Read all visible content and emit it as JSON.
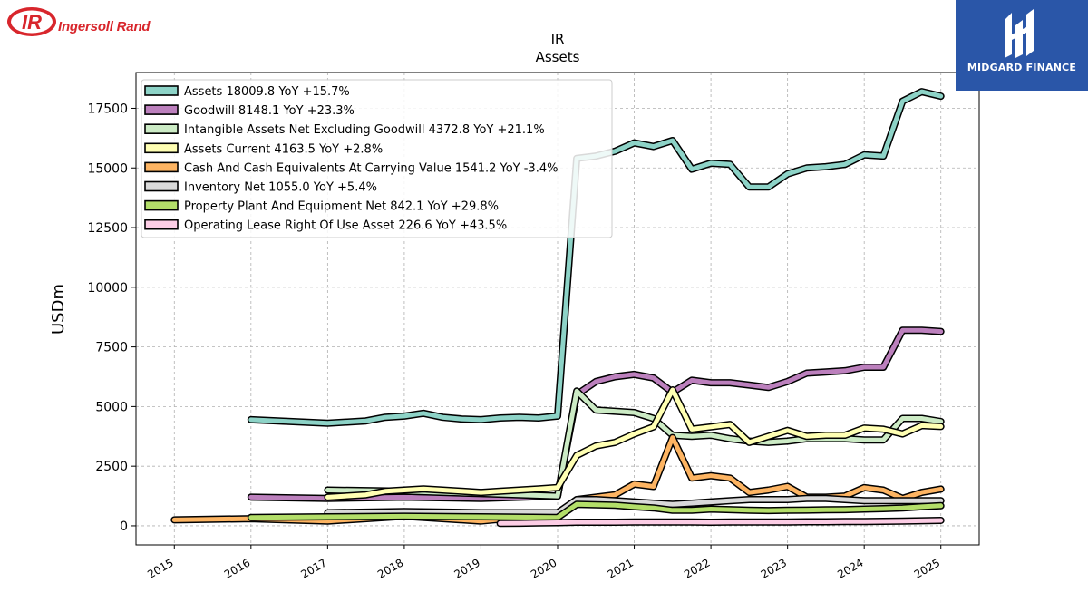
{
  "logos": {
    "left_brand": "Ingersoll Rand",
    "left_monogram": "IR",
    "right_brand": "MIDGARD FINANCE"
  },
  "chart_data": {
    "type": "line",
    "title": "IR",
    "subtitle": "Assets",
    "xlabel": "",
    "ylabel": "USDm",
    "xlim": [
      2014.5,
      2025.5
    ],
    "ylim": [
      -800,
      19000
    ],
    "x_ticks": [
      "2015",
      "2016",
      "2017",
      "2018",
      "2019",
      "2020",
      "2021",
      "2022",
      "2023",
      "2024",
      "2025"
    ],
    "y_ticks": [
      "0",
      "2500",
      "5000",
      "7500",
      "10000",
      "12500",
      "15000",
      "17500"
    ],
    "grid": true,
    "legend_position": "top-left",
    "series": [
      {
        "name": "Assets",
        "legend": "Assets  18009.8 YoY +15.7%",
        "color": "#8dd3c7",
        "points": [
          [
            2016.0,
            4450
          ],
          [
            2017.0,
            4300
          ],
          [
            2017.5,
            4400
          ],
          [
            2017.75,
            4550
          ],
          [
            2018.0,
            4600
          ],
          [
            2018.25,
            4720
          ],
          [
            2018.5,
            4550
          ],
          [
            2018.75,
            4480
          ],
          [
            2019.0,
            4450
          ],
          [
            2019.25,
            4520
          ],
          [
            2019.5,
            4550
          ],
          [
            2019.75,
            4520
          ],
          [
            2020.0,
            4600
          ],
          [
            2020.25,
            15400
          ],
          [
            2020.5,
            15500
          ],
          [
            2020.75,
            15700
          ],
          [
            2021.0,
            16050
          ],
          [
            2021.25,
            15900
          ],
          [
            2021.5,
            16150
          ],
          [
            2021.75,
            14950
          ],
          [
            2022.0,
            15200
          ],
          [
            2022.25,
            15150
          ],
          [
            2022.5,
            14200
          ],
          [
            2022.75,
            14200
          ],
          [
            2023.0,
            14750
          ],
          [
            2023.25,
            15000
          ],
          [
            2023.5,
            15050
          ],
          [
            2023.75,
            15150
          ],
          [
            2024.0,
            15550
          ],
          [
            2024.25,
            15500
          ],
          [
            2024.5,
            17800
          ],
          [
            2024.75,
            18200
          ],
          [
            2025.0,
            18010
          ]
        ]
      },
      {
        "name": "Goodwill",
        "legend": "Goodwill  8148.1 YoY +23.3%",
        "color": "#bc80bd",
        "points": [
          [
            2016.0,
            1200
          ],
          [
            2017.0,
            1150
          ],
          [
            2018.0,
            1200
          ],
          [
            2019.0,
            1150
          ],
          [
            2020.0,
            1250
          ],
          [
            2020.25,
            5500
          ],
          [
            2020.5,
            6050
          ],
          [
            2020.75,
            6250
          ],
          [
            2021.0,
            6350
          ],
          [
            2021.25,
            6200
          ],
          [
            2021.5,
            5600
          ],
          [
            2021.75,
            6100
          ],
          [
            2022.0,
            6000
          ],
          [
            2022.25,
            6000
          ],
          [
            2022.5,
            5900
          ],
          [
            2022.75,
            5800
          ],
          [
            2023.0,
            6050
          ],
          [
            2023.25,
            6400
          ],
          [
            2023.5,
            6450
          ],
          [
            2023.75,
            6500
          ],
          [
            2024.0,
            6650
          ],
          [
            2024.25,
            6650
          ],
          [
            2024.5,
            8200
          ],
          [
            2024.75,
            8200
          ],
          [
            2025.0,
            8148
          ]
        ]
      },
      {
        "name": "Intangible Assets Net Excluding Goodwill",
        "legend": "Intangible Assets Net Excluding Goodwill  4372.8 YoY +21.1%",
        "color": "#ccebc5",
        "points": [
          [
            2017.0,
            1500
          ],
          [
            2018.0,
            1450
          ],
          [
            2019.0,
            1350
          ],
          [
            2020.0,
            1250
          ],
          [
            2020.25,
            5650
          ],
          [
            2020.5,
            4850
          ],
          [
            2020.75,
            4800
          ],
          [
            2021.0,
            4750
          ],
          [
            2021.25,
            4500
          ],
          [
            2021.5,
            3800
          ],
          [
            2021.75,
            3750
          ],
          [
            2022.0,
            3800
          ],
          [
            2022.25,
            3650
          ],
          [
            2022.5,
            3550
          ],
          [
            2022.75,
            3500
          ],
          [
            2023.0,
            3550
          ],
          [
            2023.25,
            3650
          ],
          [
            2023.5,
            3650
          ],
          [
            2023.75,
            3650
          ],
          [
            2024.0,
            3600
          ],
          [
            2024.25,
            3600
          ],
          [
            2024.5,
            4500
          ],
          [
            2024.75,
            4500
          ],
          [
            2025.0,
            4373
          ]
        ]
      },
      {
        "name": "Assets Current",
        "legend": "Assets Current  4163.5 YoY +2.8%",
        "color": "#ffffb3",
        "points": [
          [
            2017.0,
            1200
          ],
          [
            2017.5,
            1300
          ],
          [
            2017.75,
            1450
          ],
          [
            2018.0,
            1500
          ],
          [
            2018.25,
            1550
          ],
          [
            2018.5,
            1500
          ],
          [
            2018.75,
            1450
          ],
          [
            2019.0,
            1400
          ],
          [
            2019.25,
            1450
          ],
          [
            2019.5,
            1500
          ],
          [
            2019.75,
            1550
          ],
          [
            2020.0,
            1600
          ],
          [
            2020.25,
            2950
          ],
          [
            2020.5,
            3350
          ],
          [
            2020.75,
            3500
          ],
          [
            2021.0,
            3850
          ],
          [
            2021.25,
            4150
          ],
          [
            2021.5,
            5700
          ],
          [
            2021.75,
            4050
          ],
          [
            2022.0,
            4150
          ],
          [
            2022.25,
            4250
          ],
          [
            2022.5,
            3500
          ],
          [
            2022.75,
            3750
          ],
          [
            2023.0,
            4000
          ],
          [
            2023.25,
            3750
          ],
          [
            2023.5,
            3800
          ],
          [
            2023.75,
            3800
          ],
          [
            2024.0,
            4100
          ],
          [
            2024.25,
            4050
          ],
          [
            2024.5,
            3850
          ],
          [
            2024.75,
            4200
          ],
          [
            2025.0,
            4164
          ]
        ]
      },
      {
        "name": "Cash And Cash Equivalents At Carrying Value",
        "legend": "Cash And Cash Equivalents At Carrying Value  1541.2 YoY -3.4%",
        "color": "#fdb462",
        "points": [
          [
            2015.0,
            250
          ],
          [
            2016.0,
            300
          ],
          [
            2017.0,
            200
          ],
          [
            2018.0,
            400
          ],
          [
            2019.0,
            200
          ],
          [
            2020.0,
            500
          ],
          [
            2020.25,
            1100
          ],
          [
            2020.5,
            1200
          ],
          [
            2020.75,
            1300
          ],
          [
            2021.0,
            1750
          ],
          [
            2021.25,
            1650
          ],
          [
            2021.5,
            3700
          ],
          [
            2021.75,
            2000
          ],
          [
            2022.0,
            2100
          ],
          [
            2022.25,
            2000
          ],
          [
            2022.5,
            1400
          ],
          [
            2022.75,
            1500
          ],
          [
            2023.0,
            1650
          ],
          [
            2023.25,
            1200
          ],
          [
            2023.5,
            1200
          ],
          [
            2023.75,
            1250
          ],
          [
            2024.0,
            1600
          ],
          [
            2024.25,
            1500
          ],
          [
            2024.5,
            1150
          ],
          [
            2024.75,
            1400
          ],
          [
            2025.0,
            1541
          ]
        ]
      },
      {
        "name": "Inventory Net",
        "legend": "Inventory Net  1055.0 YoY +5.4%",
        "color": "#d9d9d9",
        "points": [
          [
            2017.0,
            550
          ],
          [
            2018.0,
            600
          ],
          [
            2019.0,
            550
          ],
          [
            2020.0,
            550
          ],
          [
            2020.25,
            1100
          ],
          [
            2020.5,
            1100
          ],
          [
            2020.75,
            1050
          ],
          [
            2021.0,
            1000
          ],
          [
            2021.25,
            950
          ],
          [
            2021.5,
            900
          ],
          [
            2021.75,
            950
          ],
          [
            2022.0,
            1000
          ],
          [
            2022.25,
            1050
          ],
          [
            2022.5,
            1100
          ],
          [
            2022.75,
            1100
          ],
          [
            2023.0,
            1100
          ],
          [
            2023.25,
            1150
          ],
          [
            2023.5,
            1150
          ],
          [
            2023.75,
            1100
          ],
          [
            2024.0,
            1050
          ],
          [
            2024.25,
            1050
          ],
          [
            2024.5,
            1050
          ],
          [
            2024.75,
            1050
          ],
          [
            2025.0,
            1055
          ]
        ]
      },
      {
        "name": "Property Plant And Equipment Net",
        "legend": "Property Plant And Equipment Net  842.1 YoY +29.8%",
        "color": "#b3de69",
        "points": [
          [
            2016.0,
            350
          ],
          [
            2017.0,
            380
          ],
          [
            2018.0,
            400
          ],
          [
            2019.0,
            380
          ],
          [
            2020.0,
            350
          ],
          [
            2020.25,
            900
          ],
          [
            2020.5,
            880
          ],
          [
            2020.75,
            860
          ],
          [
            2021.0,
            800
          ],
          [
            2021.25,
            750
          ],
          [
            2021.5,
            650
          ],
          [
            2021.75,
            650
          ],
          [
            2022.0,
            700
          ],
          [
            2022.25,
            680
          ],
          [
            2022.5,
            650
          ],
          [
            2022.75,
            640
          ],
          [
            2023.0,
            650
          ],
          [
            2023.25,
            660
          ],
          [
            2023.5,
            670
          ],
          [
            2023.75,
            680
          ],
          [
            2024.0,
            700
          ],
          [
            2024.25,
            720
          ],
          [
            2024.5,
            750
          ],
          [
            2024.75,
            800
          ],
          [
            2025.0,
            842
          ]
        ]
      },
      {
        "name": "Operating Lease Right Of Use Asset",
        "legend": "Operating Lease Right Of Use Asset  226.6 YoY +43.5%",
        "color": "#fccde5",
        "points": [
          [
            2019.25,
            100
          ],
          [
            2019.5,
            110
          ],
          [
            2019.75,
            120
          ],
          [
            2020.0,
            130
          ],
          [
            2020.25,
            150
          ],
          [
            2020.5,
            150
          ],
          [
            2020.75,
            150
          ],
          [
            2021.0,
            160
          ],
          [
            2021.25,
            160
          ],
          [
            2021.5,
            160
          ],
          [
            2021.75,
            160
          ],
          [
            2022.0,
            150
          ],
          [
            2022.25,
            160
          ],
          [
            2022.5,
            160
          ],
          [
            2022.75,
            160
          ],
          [
            2023.0,
            160
          ],
          [
            2023.25,
            170
          ],
          [
            2023.5,
            170
          ],
          [
            2023.75,
            180
          ],
          [
            2024.0,
            180
          ],
          [
            2024.25,
            190
          ],
          [
            2024.5,
            200
          ],
          [
            2024.75,
            210
          ],
          [
            2025.0,
            227
          ]
        ]
      }
    ]
  }
}
